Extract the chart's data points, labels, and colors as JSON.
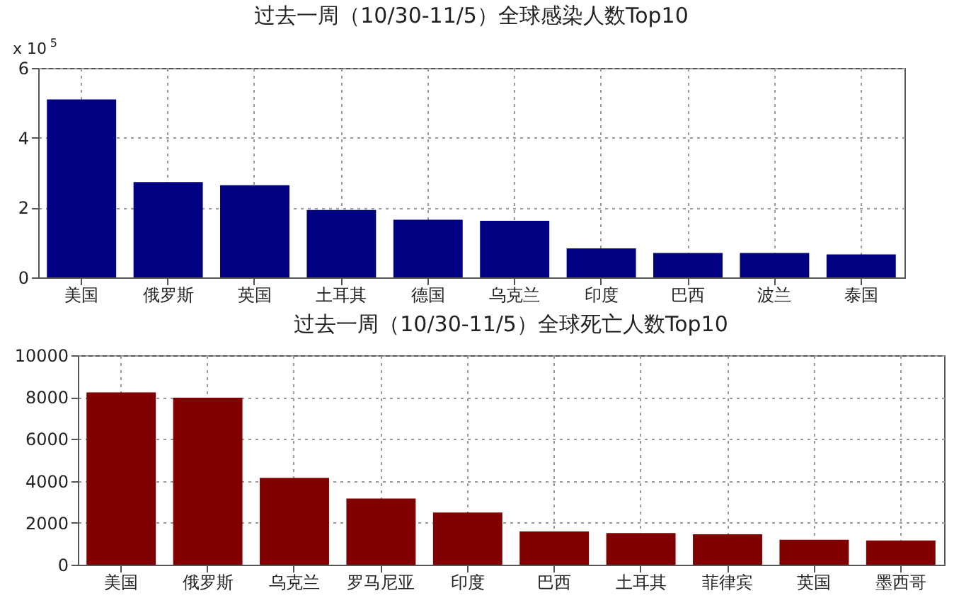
{
  "chart_data": [
    {
      "type": "bar",
      "title": "过去一周（10/30-11/5）全球感染人数Top10",
      "categories": [
        "美国",
        "俄罗斯",
        "英国",
        "土耳其",
        "德国",
        "乌克兰",
        "印度",
        "巴西",
        "波兰",
        "泰国"
      ],
      "values": [
        5.1,
        2.73,
        2.64,
        1.93,
        1.65,
        1.62,
        0.83,
        0.7,
        0.7,
        0.66
      ],
      "color": "#000080",
      "ylim": [
        0,
        6
      ],
      "yticks": [
        0,
        2,
        4,
        6
      ],
      "grid": true,
      "annotations": [
        "x 10$^{5}$"
      ]
    },
    {
      "type": "bar",
      "title": "过去一周（10/30-11/5）全球死亡人数Top10",
      "categories": [
        "美国",
        "俄罗斯",
        "乌克兰",
        "罗马尼亚",
        "印度",
        "巴西",
        "土耳其",
        "菲律宾",
        "英国",
        "墨西哥"
      ],
      "values": [
        8230,
        7970,
        4150,
        3160,
        2490,
        1590,
        1510,
        1450,
        1190,
        1160
      ],
      "color": "#800000",
      "ylim": [
        0,
        10000
      ],
      "yticks": [
        0,
        2000,
        4000,
        6000,
        8000,
        10000
      ],
      "grid": true
    }
  ]
}
